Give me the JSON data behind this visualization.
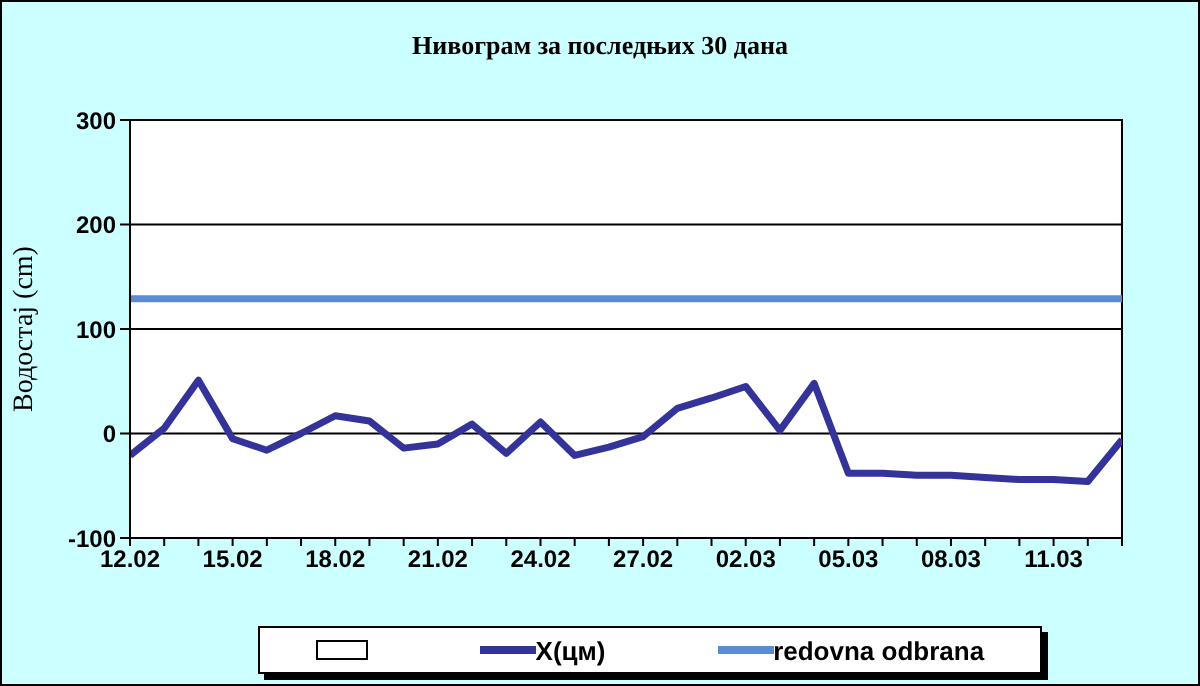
{
  "chart_data": {
    "type": "line",
    "title": "Нивограм за последњих 30 дана",
    "ylabel": "Водостај (cm)",
    "categories": [
      "12.02",
      null,
      null,
      "15.02",
      null,
      null,
      "18.02",
      null,
      null,
      "21.02",
      null,
      null,
      "24.02",
      null,
      null,
      "27.02",
      null,
      null,
      "02.03",
      null,
      null,
      "05.03",
      null,
      null,
      "08.03",
      null,
      null,
      "11.03",
      null,
      null
    ],
    "series": [
      {
        "name": "X(цм)",
        "color": "#333399",
        "values": [
          -21,
          5,
          51,
          -5,
          -16,
          0,
          17,
          12,
          -14,
          -10,
          9,
          -19,
          11,
          -21,
          -13,
          -3,
          24,
          34,
          45,
          3,
          48,
          -38,
          -38,
          -40,
          -40,
          -42,
          -44,
          -44,
          -46,
          -6
        ]
      }
    ],
    "ref_lines": [
      {
        "axis": "y",
        "value": 129,
        "label": "redovna odbrana",
        "color": "#5b8bd3"
      }
    ],
    "ylim": [
      -100,
      300
    ],
    "yticks": [
      -100,
      0,
      100,
      200,
      300
    ],
    "grid": "y",
    "legend": "bottom",
    "marker": "none",
    "line_style": "solid"
  }
}
